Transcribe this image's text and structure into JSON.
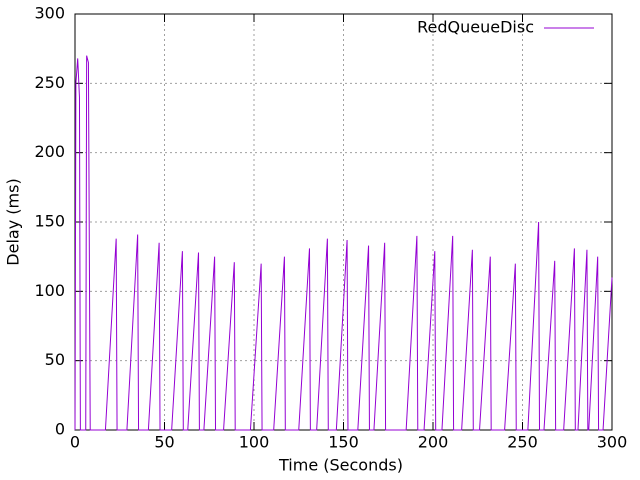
{
  "chart_data": {
    "type": "line",
    "x_label": "Time (Seconds)",
    "y_label": "Delay (ms)",
    "x": [
      0,
      0.5,
      1.5,
      2.5,
      3,
      6,
      6.5,
      7.5,
      8.5,
      17,
      23,
      23.5,
      29,
      35,
      35.5,
      41,
      47,
      47.5,
      54,
      60,
      60.5,
      63,
      69,
      69.5,
      72,
      78,
      78.5,
      83,
      89,
      89.5,
      98,
      104,
      104.5,
      111,
      117,
      117.5,
      125,
      131,
      131.5,
      135,
      141,
      141.5,
      146,
      152,
      152.5,
      158,
      164,
      164.5,
      167,
      173,
      173.5,
      185,
      191,
      191.5,
      195,
      201,
      201.5,
      205,
      211,
      211.5,
      216,
      222,
      222.5,
      226,
      232,
      232.5,
      240,
      246,
      246.5,
      253,
      259,
      259.5,
      262,
      268,
      268.5,
      273,
      279,
      279.5,
      281,
      286,
      286.5,
      287,
      292,
      292.5,
      295,
      300
    ],
    "series": [
      {
        "name": "RedQueueDisc",
        "color": "#9400d3",
        "values": [
          0,
          250,
          268,
          240,
          0,
          0,
          270,
          265,
          0,
          0,
          138,
          0,
          0,
          141,
          0,
          0,
          135,
          0,
          0,
          129,
          0,
          0,
          128,
          0,
          0,
          125,
          0,
          0,
          121,
          0,
          0,
          120,
          0,
          0,
          125,
          0,
          0,
          131,
          0,
          0,
          138,
          0,
          0,
          137,
          0,
          0,
          133,
          0,
          0,
          135,
          0,
          0,
          140,
          0,
          0,
          129,
          0,
          0,
          140,
          0,
          0,
          130,
          0,
          0,
          125,
          0,
          0,
          120,
          0,
          0,
          150,
          0,
          0,
          122,
          0,
          0,
          131,
          0,
          0,
          130,
          0,
          0,
          125,
          0,
          0,
          110
        ]
      }
    ],
    "xlim": [
      0,
      300
    ],
    "ylim": [
      0,
      300
    ],
    "xticks": [
      0,
      50,
      100,
      150,
      200,
      250,
      300
    ],
    "yticks": [
      0,
      50,
      100,
      150,
      200,
      250,
      300
    ],
    "grid": true,
    "legend": "top-right"
  }
}
